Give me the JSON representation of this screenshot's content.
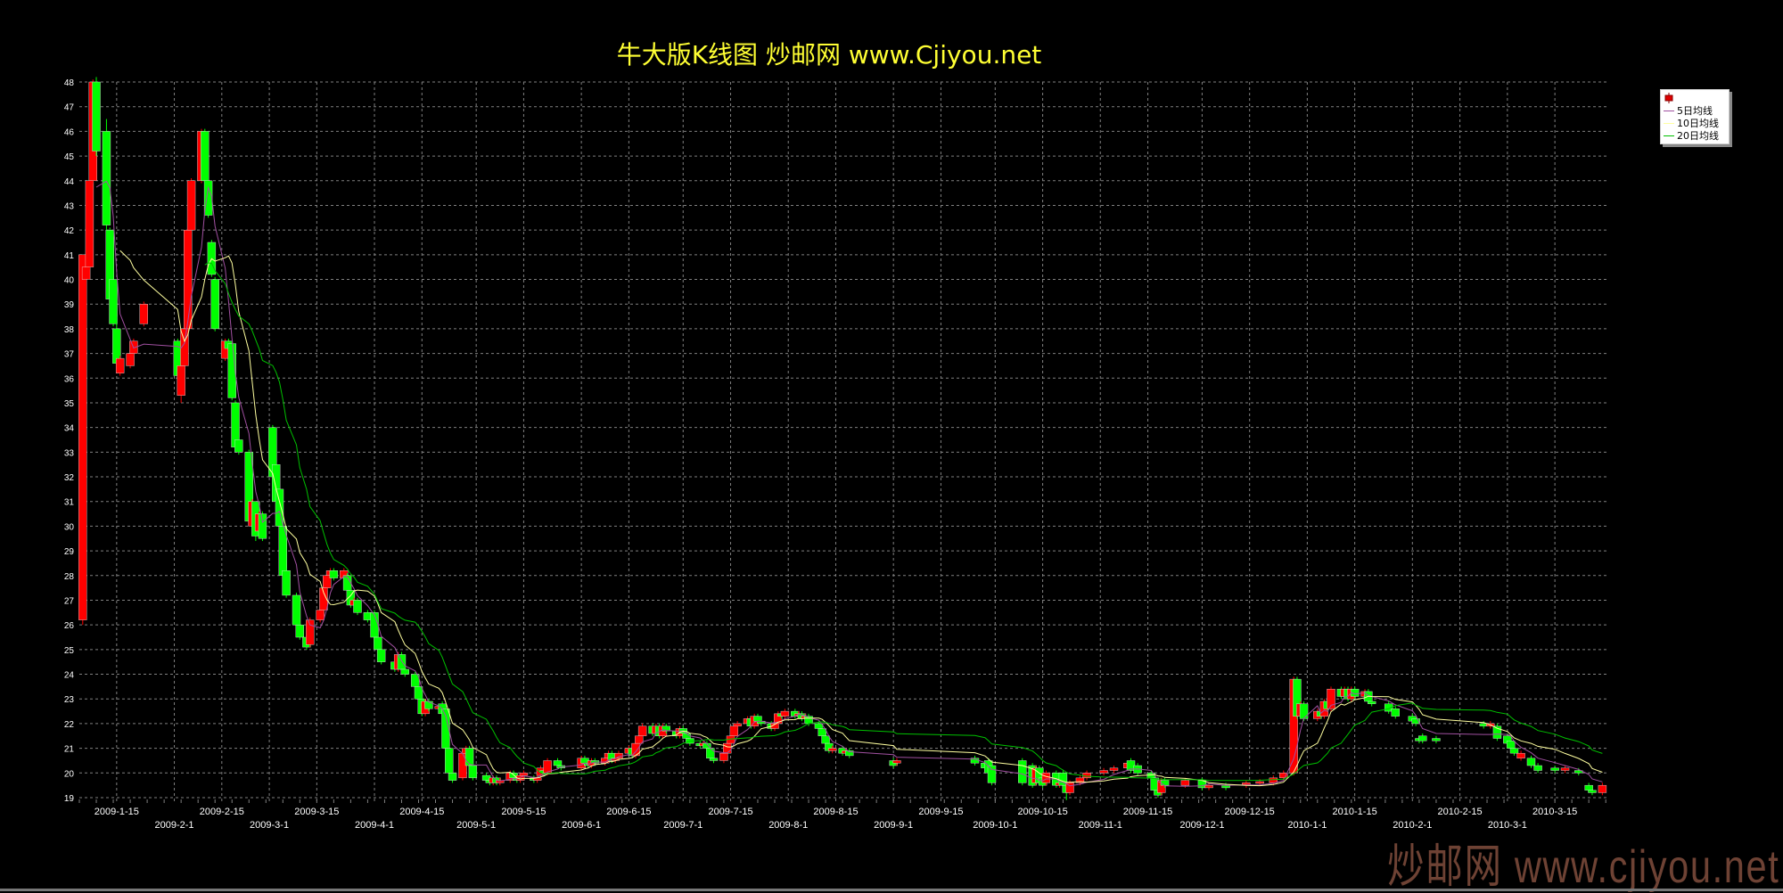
{
  "title": "牛大版K线图  炒邮网 www.Cjiyou.net",
  "watermark": "炒邮网 www.cjiyou.net",
  "legend": {
    "items": [
      {
        "label": "",
        "kind": "candle"
      },
      {
        "label": "5日均线",
        "color": "#a050a0"
      },
      {
        "label": "10日均线",
        "color": "#ffffa0"
      },
      {
        "label": "20日均线",
        "color": "#00c000"
      }
    ]
  },
  "colors": {
    "up": "#ff0000",
    "down": "#00ff00",
    "grid": "#808080",
    "axis_text": "#ffffff",
    "title": "#ffff33"
  },
  "chart_data": {
    "type": "candlestick",
    "title": "牛大版K线图  炒邮网 www.Cjiyou.net",
    "ylim": [
      19,
      48
    ],
    "xlim": [
      "2009-01-04",
      "2010-03-31"
    ],
    "grid": true,
    "legend_position": "top-right",
    "yticks": [
      19,
      20,
      21,
      22,
      23,
      24,
      25,
      26,
      27,
      28,
      29,
      30,
      31,
      32,
      33,
      34,
      35,
      36,
      37,
      38,
      39,
      40,
      41,
      42,
      43,
      44,
      45,
      46,
      47,
      48
    ],
    "xticks": [
      {
        "date": "2009-01-15",
        "label": "2009-1-15"
      },
      {
        "date": "2009-02-01",
        "label": "2009-2-1"
      },
      {
        "date": "2009-02-15",
        "label": "2009-2-15"
      },
      {
        "date": "2009-03-01",
        "label": "2009-3-1"
      },
      {
        "date": "2009-03-15",
        "label": "2009-3-15"
      },
      {
        "date": "2009-04-01",
        "label": "2009-4-1"
      },
      {
        "date": "2009-04-15",
        "label": "2009-4-15"
      },
      {
        "date": "2009-05-01",
        "label": "2009-5-1"
      },
      {
        "date": "2009-05-15",
        "label": "2009-5-15"
      },
      {
        "date": "2009-06-01",
        "label": "2009-6-1"
      },
      {
        "date": "2009-06-15",
        "label": "2009-6-15"
      },
      {
        "date": "2009-07-01",
        "label": "2009-7-1"
      },
      {
        "date": "2009-07-15",
        "label": "2009-7-15"
      },
      {
        "date": "2009-08-01",
        "label": "2009-8-1"
      },
      {
        "date": "2009-08-15",
        "label": "2009-8-15"
      },
      {
        "date": "2009-09-01",
        "label": "2009-9-1"
      },
      {
        "date": "2009-09-15",
        "label": "2009-9-15"
      },
      {
        "date": "2009-10-01",
        "label": "2009-10-1"
      },
      {
        "date": "2009-10-15",
        "label": "2009-10-15"
      },
      {
        "date": "2009-11-01",
        "label": "2009-11-1"
      },
      {
        "date": "2009-11-15",
        "label": "2009-11-15"
      },
      {
        "date": "2009-12-01",
        "label": "2009-12-1"
      },
      {
        "date": "2009-12-15",
        "label": "2009-12-15"
      },
      {
        "date": "2010-01-01",
        "label": "2010-1-1"
      },
      {
        "date": "2010-01-15",
        "label": "2010-1-15"
      },
      {
        "date": "2010-02-01",
        "label": "2010-2-1"
      },
      {
        "date": "2010-02-15",
        "label": "2010-2-15"
      },
      {
        "date": "2010-03-01",
        "label": "2010-3-1"
      },
      {
        "date": "2010-03-15",
        "label": "2010-3-15"
      }
    ],
    "ma_periods": [
      5,
      10,
      20
    ],
    "candles_format": [
      "date",
      "open",
      "close",
      "high",
      "low"
    ],
    "candles": [
      [
        "2009-01-05",
        26.2,
        41,
        41,
        26
      ],
      [
        "2009-01-06",
        40,
        40.5,
        41,
        38
      ],
      [
        "2009-01-07",
        40.5,
        44
      ],
      [
        "2009-01-08",
        44,
        48
      ],
      [
        "2009-01-09",
        48,
        45.2,
        48.2,
        45
      ],
      [
        "2009-01-12",
        46,
        42.2,
        46.5,
        42
      ],
      [
        "2009-01-13",
        42,
        39.2
      ],
      [
        "2009-01-14",
        40,
        38.2
      ],
      [
        "2009-01-15",
        38,
        36.6,
        38.5,
        36.5
      ],
      [
        "2009-01-16",
        36.2,
        36.8
      ],
      [
        "2009-01-19",
        36.5,
        37
      ],
      [
        "2009-01-20",
        37,
        37.5
      ],
      [
        "2009-01-23",
        38.2,
        39
      ],
      [
        "2009-02-02",
        37.5,
        36.1
      ],
      [
        "2009-02-03",
        35.3,
        36.5,
        36.8,
        35
      ],
      [
        "2009-02-04",
        36.5,
        38
      ],
      [
        "2009-02-05",
        38,
        42
      ],
      [
        "2009-02-06",
        42,
        44
      ],
      [
        "2009-02-09",
        44,
        46
      ],
      [
        "2009-02-10",
        46,
        44
      ],
      [
        "2009-02-11",
        44,
        42.6
      ],
      [
        "2009-02-12",
        41.5,
        40.2
      ],
      [
        "2009-02-13",
        40,
        38
      ],
      [
        "2009-02-16",
        36.8,
        37.5
      ],
      [
        "2009-02-17",
        37.5,
        37.2
      ],
      [
        "2009-02-18",
        37.4,
        35.2
      ],
      [
        "2009-02-19",
        35,
        33.2
      ],
      [
        "2009-02-20",
        33.5,
        33
      ],
      [
        "2009-02-23",
        33,
        30.2
      ],
      [
        "2009-02-24",
        30,
        31
      ],
      [
        "2009-02-25",
        31,
        29.6,
        31,
        29.4
      ],
      [
        "2009-02-26",
        29.8,
        30.5
      ],
      [
        "2009-02-27",
        30.5,
        29.5
      ],
      [
        "2009-03-02",
        34,
        32
      ],
      [
        "2009-03-03",
        32.5,
        31
      ],
      [
        "2009-03-04",
        31.5,
        30
      ],
      [
        "2009-03-05",
        30,
        28
      ],
      [
        "2009-03-06",
        28.2,
        27.2
      ],
      [
        "2009-03-09",
        27.2,
        26
      ],
      [
        "2009-03-10",
        26,
        25.5
      ],
      [
        "2009-03-12",
        25.5,
        25.1
      ],
      [
        "2009-03-13",
        25.2,
        26.2
      ],
      [
        "2009-03-16",
        26.2,
        26.6
      ],
      [
        "2009-03-17",
        26.6,
        27.5
      ],
      [
        "2009-03-18",
        27.5,
        28
      ],
      [
        "2009-03-19",
        28,
        28.2
      ],
      [
        "2009-03-20",
        28.2,
        27.9
      ],
      [
        "2009-03-23",
        27.9,
        28.2
      ],
      [
        "2009-03-24",
        28,
        27.4
      ],
      [
        "2009-03-25",
        27.4,
        26.8
      ],
      [
        "2009-03-26",
        26.8,
        27
      ],
      [
        "2009-03-27",
        27,
        26.5
      ],
      [
        "2009-03-30",
        26.5,
        26.2
      ],
      [
        "2009-04-01",
        26.5,
        25.5
      ],
      [
        "2009-04-02",
        25.5,
        25
      ],
      [
        "2009-04-03",
        25,
        24.5
      ],
      [
        "2009-04-07",
        24.5,
        24.2
      ],
      [
        "2009-04-08",
        24.2,
        24.8
      ],
      [
        "2009-04-09",
        24.8,
        24.2
      ],
      [
        "2009-04-10",
        24.2,
        24
      ],
      [
        "2009-04-13",
        24,
        23.5
      ],
      [
        "2009-04-14",
        23.5,
        23
      ],
      [
        "2009-04-15",
        23,
        22.4
      ],
      [
        "2009-04-16",
        22.4,
        22.9
      ],
      [
        "2009-04-17",
        22.9,
        22.6
      ],
      [
        "2009-04-20",
        22.6,
        22.7
      ],
      [
        "2009-04-21",
        22.8,
        22.4
      ],
      [
        "2009-04-22",
        22.6,
        21
      ],
      [
        "2009-04-23",
        21,
        20
      ],
      [
        "2009-04-24",
        20,
        19.7
      ],
      [
        "2009-04-27",
        19.8,
        20.8
      ],
      [
        "2009-04-28",
        20.8,
        21
      ],
      [
        "2009-04-29",
        21,
        20.3
      ],
      [
        "2009-04-30",
        20.3,
        19.8
      ],
      [
        "2009-05-04",
        19.9,
        19.7
      ],
      [
        "2009-05-05",
        19.7,
        19.6
      ],
      [
        "2009-05-06",
        19.6,
        19.8
      ],
      [
        "2009-05-07",
        19.8,
        19.6
      ],
      [
        "2009-05-08",
        19.6,
        19.7
      ],
      [
        "2009-05-11",
        19.7,
        20
      ],
      [
        "2009-05-12",
        20,
        19.8
      ],
      [
        "2009-05-13",
        19.8,
        19.7
      ],
      [
        "2009-05-14",
        19.7,
        19.9
      ],
      [
        "2009-05-15",
        19.9,
        20
      ],
      [
        "2009-05-18",
        19.8,
        19.7
      ],
      [
        "2009-05-19",
        19.7,
        19.8
      ],
      [
        "2009-05-20",
        19.9,
        20.2
      ],
      [
        "2009-05-21",
        20.1,
        20
      ],
      [
        "2009-05-22",
        20,
        20.5
      ],
      [
        "2009-05-25",
        20.5,
        20.3
      ],
      [
        "2009-05-26",
        20.3,
        20.2
      ],
      [
        "2009-06-01",
        20.2,
        20.6
      ],
      [
        "2009-06-02",
        20.6,
        20.4
      ],
      [
        "2009-06-03",
        20.4,
        20.3
      ],
      [
        "2009-06-04",
        20.3,
        20.5
      ],
      [
        "2009-06-05",
        20.5,
        20.4
      ],
      [
        "2009-06-08",
        20.4,
        20.6
      ],
      [
        "2009-06-09",
        20.6,
        20.8
      ],
      [
        "2009-06-10",
        20.8,
        20.5
      ],
      [
        "2009-06-11",
        20.5,
        20.6
      ],
      [
        "2009-06-12",
        20.6,
        20.8
      ],
      [
        "2009-06-15",
        20.8,
        21
      ],
      [
        "2009-06-16",
        21,
        20.7
      ],
      [
        "2009-06-17",
        20.7,
        21.2
      ],
      [
        "2009-06-18",
        21.2,
        21.5
      ],
      [
        "2009-06-19",
        21.5,
        21.9
      ],
      [
        "2009-06-22",
        21.9,
        21.6
      ],
      [
        "2009-06-23",
        21.6,
        21.9
      ],
      [
        "2009-06-24",
        21.9,
        21.5
      ],
      [
        "2009-06-25",
        21.5,
        21.9
      ],
      [
        "2009-06-26",
        21.9,
        21.7
      ],
      [
        "2009-06-29",
        21.7,
        21.5
      ],
      [
        "2009-06-30",
        21.5,
        21.8
      ],
      [
        "2009-07-01",
        21.8,
        21.6
      ],
      [
        "2009-07-02",
        21.6,
        21.4
      ],
      [
        "2009-07-03",
        21.4,
        21.2
      ],
      [
        "2009-07-06",
        21.2,
        21.1
      ],
      [
        "2009-07-07",
        21.1,
        21.2
      ],
      [
        "2009-07-08",
        21.2,
        21
      ],
      [
        "2009-07-09",
        21,
        20.6
      ],
      [
        "2009-07-10",
        20.6,
        20.5
      ],
      [
        "2009-07-13",
        20.5,
        20.8
      ],
      [
        "2009-07-14",
        20.8,
        21.2
      ],
      [
        "2009-07-15",
        21.2,
        21.5
      ],
      [
        "2009-07-16",
        21.5,
        21.9
      ],
      [
        "2009-07-17",
        21.9,
        22
      ],
      [
        "2009-07-20",
        22,
        22.2
      ],
      [
        "2009-07-21",
        22.2,
        21.9
      ],
      [
        "2009-07-22",
        21.9,
        22.3
      ],
      [
        "2009-07-23",
        22.3,
        22.1
      ],
      [
        "2009-07-24",
        22.1,
        22
      ],
      [
        "2009-07-27",
        22,
        21.8
      ],
      [
        "2009-07-28",
        21.8,
        22
      ],
      [
        "2009-07-29",
        22,
        22.4
      ],
      [
        "2009-07-30",
        22.4,
        22.3
      ],
      [
        "2009-07-31",
        22.3,
        22.5
      ],
      [
        "2009-08-03",
        22.5,
        22.3
      ],
      [
        "2009-08-04",
        22.3,
        22.4
      ],
      [
        "2009-08-05",
        22.4,
        22.2
      ],
      [
        "2009-08-06",
        22.2,
        22.3
      ],
      [
        "2009-08-07",
        22.3,
        22
      ],
      [
        "2009-08-10",
        22,
        21.8
      ],
      [
        "2009-08-11",
        21.8,
        21.5
      ],
      [
        "2009-08-12",
        21.5,
        21.2
      ],
      [
        "2009-08-13",
        21.2,
        20.9
      ],
      [
        "2009-08-14",
        20.9,
        21
      ],
      [
        "2009-08-17",
        21,
        20.8
      ],
      [
        "2009-08-18",
        20.8,
        20.9
      ],
      [
        "2009-08-19",
        20.9,
        20.7
      ],
      [
        "2009-09-01",
        20.5,
        20.3
      ],
      [
        "2009-09-02",
        20.4,
        20.5
      ],
      [
        "2009-09-25",
        20.6,
        20.4
      ],
      [
        "2009-09-28",
        20.4,
        20.2
      ],
      [
        "2009-09-29",
        20.5,
        20
      ],
      [
        "2009-09-30",
        20.3,
        19.6
      ],
      [
        "2009-10-09",
        20.5,
        19.6
      ],
      [
        "2009-10-12",
        20.3,
        19.5
      ],
      [
        "2009-10-13",
        19.6,
        20.2
      ],
      [
        "2009-10-14",
        20.2,
        19.6
      ],
      [
        "2009-10-15",
        19.8,
        19.5
      ],
      [
        "2009-10-16",
        19.6,
        20
      ],
      [
        "2009-10-19",
        20,
        19.5
      ],
      [
        "2009-10-20",
        19.5,
        19.6
      ],
      [
        "2009-10-21",
        20,
        19.5
      ],
      [
        "2009-10-22",
        19.5,
        19.2,
        19.5,
        18.9
      ],
      [
        "2009-10-23",
        19.2,
        19.6
      ],
      [
        "2009-10-26",
        19.6,
        19.8
      ],
      [
        "2009-10-28",
        19.8,
        20
      ],
      [
        "2009-11-02",
        20,
        20.1
      ],
      [
        "2009-11-05",
        20.1,
        20.2
      ],
      [
        "2009-11-09",
        20.2,
        20.4
      ],
      [
        "2009-11-10",
        20.5,
        20.1
      ],
      [
        "2009-11-12",
        20.3,
        20
      ],
      [
        "2009-11-16",
        20,
        19.8
      ],
      [
        "2009-11-17",
        19.8,
        19.3
      ],
      [
        "2009-11-18",
        19.3,
        19.1
      ],
      [
        "2009-11-19",
        19.2,
        19.7
      ],
      [
        "2009-11-20",
        19.7,
        19.5
      ],
      [
        "2009-11-26",
        19.5,
        19.7
      ],
      [
        "2009-12-01",
        19.7,
        19.4
      ],
      [
        "2009-12-03",
        19.4,
        19.5
      ],
      [
        "2009-12-08",
        19.5,
        19.4
      ],
      [
        "2009-12-14",
        19.5,
        19.6
      ],
      [
        "2009-12-18",
        19.6,
        19.65
      ],
      [
        "2009-12-22",
        19.6,
        19.8
      ],
      [
        "2009-12-25",
        19.8,
        20
      ],
      [
        "2009-12-28",
        20,
        23.8
      ],
      [
        "2009-12-29",
        23.8,
        22.3
      ],
      [
        "2009-12-30",
        22.3,
        22.8
      ],
      [
        "2009-12-31",
        22.8,
        22.2
      ],
      [
        "2010-01-04",
        22.2,
        22.5
      ],
      [
        "2010-01-05",
        22.5,
        22.3
      ],
      [
        "2010-01-06",
        22.3,
        22.9
      ],
      [
        "2010-01-07",
        22.9,
        22.6
      ],
      [
        "2010-01-08",
        22.6,
        23.4
      ],
      [
        "2010-01-11",
        23.4,
        23.1
      ],
      [
        "2010-01-12",
        23.1,
        23.4
      ],
      [
        "2010-01-13",
        23.4,
        23
      ],
      [
        "2010-01-14",
        23,
        23.4
      ],
      [
        "2010-01-15",
        23.4,
        23.1
      ],
      [
        "2010-01-18",
        23.1,
        23.3
      ],
      [
        "2010-01-19",
        23.3,
        22.9
      ],
      [
        "2010-01-20",
        22.9,
        22.8
      ],
      [
        "2010-01-25",
        22.8,
        22.5
      ],
      [
        "2010-01-27",
        22.6,
        22.3
      ],
      [
        "2010-02-01",
        22.3,
        22.1
      ],
      [
        "2010-02-02",
        22.2,
        22
      ],
      [
        "2010-02-03",
        21.4,
        21.3
      ],
      [
        "2010-02-04",
        21.5,
        21.3
      ],
      [
        "2010-02-08",
        21.4,
        21.3
      ],
      [
        "2010-02-22",
        22,
        21.9
      ],
      [
        "2010-02-24",
        21.9,
        22
      ],
      [
        "2010-02-26",
        21.9,
        21.4
      ],
      [
        "2010-03-01",
        21.5,
        21.2
      ],
      [
        "2010-03-02",
        21.3,
        21
      ],
      [
        "2010-03-03",
        21,
        20.8
      ],
      [
        "2010-03-05",
        20.6,
        20.8
      ],
      [
        "2010-03-08",
        20.6,
        20.3
      ],
      [
        "2010-03-10",
        20.3,
        20.1
      ],
      [
        "2010-03-15",
        20.2,
        20.1
      ],
      [
        "2010-03-18",
        20.1,
        20.2
      ],
      [
        "2010-03-22",
        20.1,
        20
      ],
      [
        "2010-03-25",
        19.5,
        19.3
      ],
      [
        "2010-03-26",
        19.3,
        19.2
      ],
      [
        "2010-03-29",
        19.2,
        19.5
      ]
    ]
  }
}
